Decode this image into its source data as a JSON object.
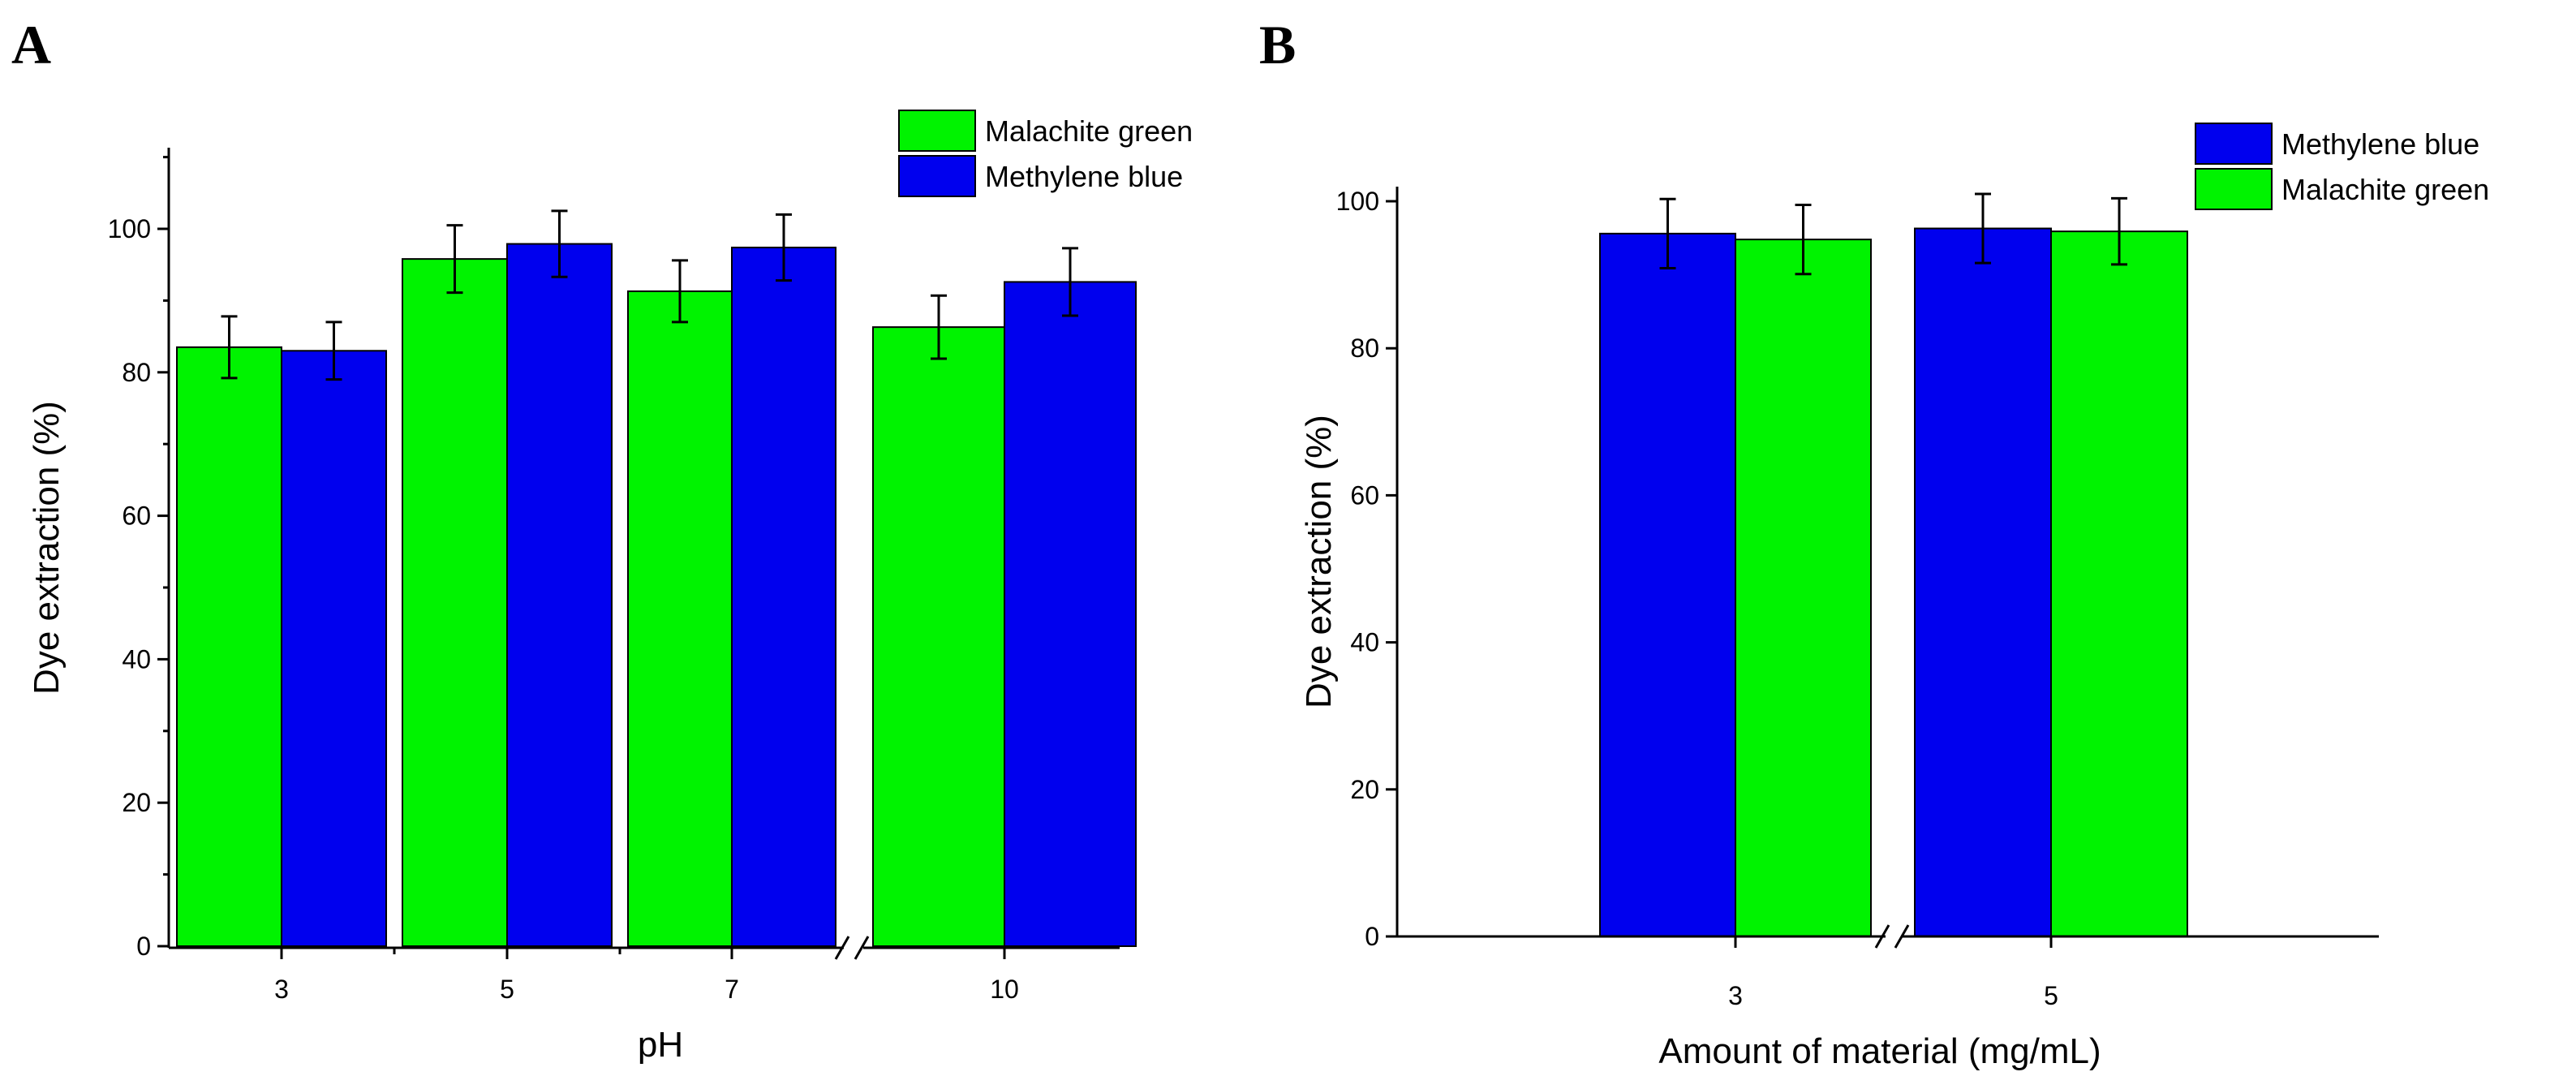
{
  "figure": {
    "panel_a_label": "A",
    "panel_b_label": "B"
  },
  "colors": {
    "malachite_green": "#00f300",
    "methylene_blue": "#0000ee"
  },
  "chart_data": [
    {
      "type": "bar",
      "panel": "A",
      "title": "",
      "xlabel": "pH",
      "ylabel": "Dye extraction (%)",
      "categories": [
        "3",
        "5",
        "7",
        "10"
      ],
      "axis_break": "between 7 and 10",
      "ylim": [
        0,
        110
      ],
      "yticks": [
        0,
        20,
        40,
        60,
        80,
        100
      ],
      "legend_position": "top-right",
      "series": [
        {
          "name": "Malachite green",
          "color": "#00f300",
          "values": [
            83.5,
            95.8,
            91.3,
            86.3
          ],
          "errors": [
            4.3,
            4.7,
            4.3,
            4.4
          ]
        },
        {
          "name": "Methylene blue",
          "color": "#0000ee",
          "values": [
            83.0,
            97.9,
            97.4,
            92.6
          ],
          "errors": [
            4.0,
            4.6,
            4.6,
            4.7
          ]
        }
      ]
    },
    {
      "type": "bar",
      "panel": "B",
      "title": "",
      "xlabel": "Amount of material (mg/mL)",
      "ylabel": "Dye extraction (%)",
      "categories": [
        "3",
        "5"
      ],
      "axis_break": "between 3 and 5",
      "ylim": [
        0,
        102
      ],
      "yticks": [
        0,
        20,
        40,
        60,
        80,
        100
      ],
      "legend_position": "top-right",
      "series": [
        {
          "name": "Methylene blue",
          "color": "#0000ee",
          "values": [
            95.6,
            96.3
          ],
          "errors": [
            4.7,
            4.7
          ]
        },
        {
          "name": "Malachite green",
          "color": "#00f300",
          "values": [
            94.8,
            95.9
          ],
          "errors": [
            4.7,
            4.5
          ]
        }
      ]
    }
  ]
}
